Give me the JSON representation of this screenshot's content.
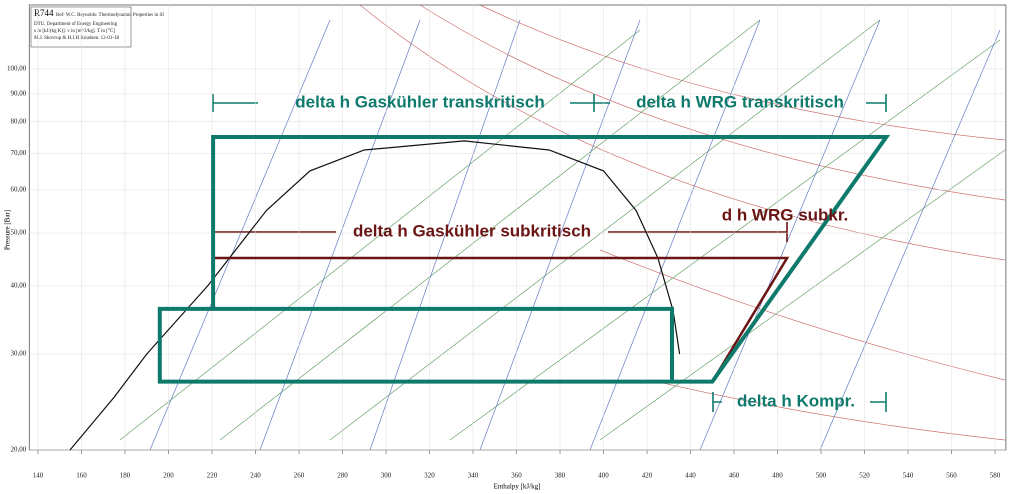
{
  "chart_data": {
    "type": "line",
    "title": "R744",
    "subtitle": "Ref: W.C. Reynolds: Thermodynamic Properties in SI",
    "info": [
      "DTU, Department of Energy Engineering",
      "s in [kJ/(kg K)]. v in [m^3/kg]. T in [°C]",
      "M.J. Skovrup & H.J.H Knudsen. 12-01-18"
    ],
    "x_label": "Enthalpy [kJ/kg]",
    "y_label": "Pressure [Bar]",
    "xlim": [
      136,
      585
    ],
    "ylim": [
      20,
      131
    ],
    "log_y": true,
    "grid": true,
    "xticks": [
      140,
      160,
      180,
      200,
      220,
      240,
      260,
      280,
      300,
      320,
      340,
      360,
      380,
      400,
      420,
      440,
      460,
      480,
      500,
      520,
      540,
      560,
      580
    ],
    "yticks": [
      {
        "value": 20,
        "label": "20,00"
      },
      {
        "value": 30,
        "label": "30,00"
      },
      {
        "value": 40,
        "label": "40,00"
      },
      {
        "value": 50,
        "label": "50,00"
      },
      {
        "value": 60,
        "label": "60,00"
      },
      {
        "value": 70,
        "label": "70,00"
      },
      {
        "value": 80,
        "label": "80,00"
      },
      {
        "value": 90,
        "label": "90,00"
      },
      {
        "value": 100,
        "label": "100,00"
      }
    ],
    "series": [
      {
        "color": "#111111",
        "width": 1.2,
        "x": [
          154.7,
          175,
          190,
          205,
          218,
          228,
          245,
          265,
          290,
          336,
          375,
          400,
          415,
          425,
          432,
          435
        ],
        "values": [
          20,
          25,
          30,
          35,
          40,
          45,
          55,
          65,
          71,
          73.8,
          71,
          65,
          55,
          45,
          36,
          30
        ]
      },
      {
        "color": "#6b1414",
        "width": 2.5,
        "x": [
          220.5,
          484.4,
          450
        ],
        "values": [
          45,
          45,
          26.7
        ]
      },
      {
        "color": "#0e7a6c",
        "width": 4,
        "x": [
          220.5,
          220.5,
          530,
          450,
          196,
          196,
          431.5,
          431.5
        ],
        "values": [
          36.3,
          75,
          75,
          26.7,
          26.7,
          36.3,
          36.3,
          26.7
        ]
      }
    ],
    "annotations": [
      {
        "text": "delta h Gaskühler transkritisch",
        "color": "#0e7a6c"
      },
      {
        "text": "delta h WRG transkritisch",
        "color": "#0e7a6c"
      },
      {
        "text": "delta h Gaskühler subkritisch",
        "color": "#6b1414"
      },
      {
        "text": "d h WRG subkr.",
        "color": "#6b1414"
      },
      {
        "text": "delta h Kompr.",
        "color": "#0e7a6c"
      }
    ]
  }
}
